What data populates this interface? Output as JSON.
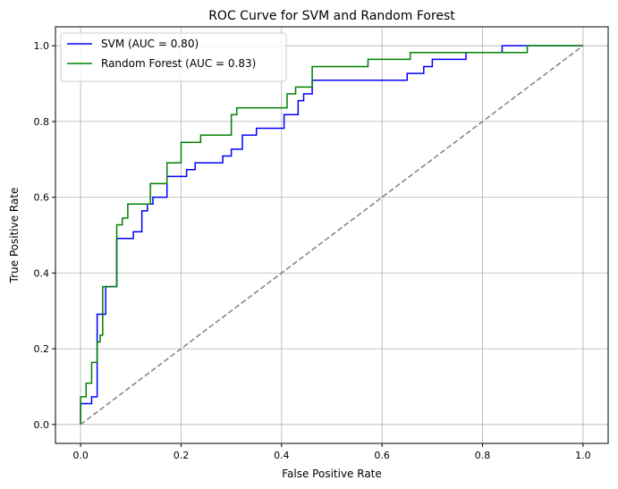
{
  "chart_data": {
    "type": "line",
    "title": "ROC Curve for SVM and Random Forest",
    "xlabel": "False Positive Rate",
    "ylabel": "True Positive Rate",
    "xlim": [
      -0.05,
      1.05
    ],
    "ylim": [
      -0.05,
      1.05
    ],
    "xticks": [
      "0.0",
      "0.2",
      "0.4",
      "0.6",
      "0.8",
      "1.0"
    ],
    "yticks": [
      "0.0",
      "0.2",
      "0.4",
      "0.6",
      "0.8",
      "1.0"
    ],
    "grid": true,
    "legend_position": "upper-left",
    "series": [
      {
        "name": "SVM (AUC = 0.80)",
        "color": "#0000ff",
        "style": "solid",
        "points": [
          [
            0.0,
            0.0
          ],
          [
            0.0,
            0.055
          ],
          [
            0.022,
            0.055
          ],
          [
            0.022,
            0.073
          ],
          [
            0.033,
            0.073
          ],
          [
            0.033,
            0.291
          ],
          [
            0.05,
            0.291
          ],
          [
            0.05,
            0.364
          ],
          [
            0.072,
            0.364
          ],
          [
            0.072,
            0.491
          ],
          [
            0.105,
            0.491
          ],
          [
            0.105,
            0.509
          ],
          [
            0.122,
            0.509
          ],
          [
            0.122,
            0.564
          ],
          [
            0.133,
            0.564
          ],
          [
            0.133,
            0.582
          ],
          [
            0.144,
            0.582
          ],
          [
            0.144,
            0.6
          ],
          [
            0.172,
            0.6
          ],
          [
            0.172,
            0.655
          ],
          [
            0.211,
            0.655
          ],
          [
            0.211,
            0.673
          ],
          [
            0.228,
            0.673
          ],
          [
            0.228,
            0.691
          ],
          [
            0.283,
            0.691
          ],
          [
            0.283,
            0.709
          ],
          [
            0.3,
            0.709
          ],
          [
            0.3,
            0.727
          ],
          [
            0.322,
            0.727
          ],
          [
            0.322,
            0.764
          ],
          [
            0.35,
            0.764
          ],
          [
            0.35,
            0.782
          ],
          [
            0.405,
            0.782
          ],
          [
            0.405,
            0.818
          ],
          [
            0.433,
            0.818
          ],
          [
            0.433,
            0.855
          ],
          [
            0.444,
            0.855
          ],
          [
            0.444,
            0.873
          ],
          [
            0.461,
            0.873
          ],
          [
            0.461,
            0.909
          ],
          [
            0.65,
            0.909
          ],
          [
            0.65,
            0.927
          ],
          [
            0.683,
            0.927
          ],
          [
            0.683,
            0.945
          ],
          [
            0.7,
            0.945
          ],
          [
            0.7,
            0.964
          ],
          [
            0.767,
            0.964
          ],
          [
            0.767,
            0.982
          ],
          [
            0.839,
            0.982
          ],
          [
            0.839,
            1.0
          ],
          [
            1.0,
            1.0
          ]
        ]
      },
      {
        "name": "Random Forest (AUC = 0.83)",
        "color": "#008000",
        "style": "solid",
        "points": [
          [
            0.0,
            0.0
          ],
          [
            0.0,
            0.073
          ],
          [
            0.011,
            0.073
          ],
          [
            0.011,
            0.109
          ],
          [
            0.022,
            0.109
          ],
          [
            0.022,
            0.164
          ],
          [
            0.033,
            0.164
          ],
          [
            0.033,
            0.218
          ],
          [
            0.039,
            0.218
          ],
          [
            0.039,
            0.236
          ],
          [
            0.044,
            0.236
          ],
          [
            0.044,
            0.364
          ],
          [
            0.072,
            0.364
          ],
          [
            0.072,
            0.527
          ],
          [
            0.083,
            0.527
          ],
          [
            0.083,
            0.545
          ],
          [
            0.094,
            0.545
          ],
          [
            0.094,
            0.582
          ],
          [
            0.139,
            0.582
          ],
          [
            0.139,
            0.636
          ],
          [
            0.172,
            0.636
          ],
          [
            0.172,
            0.691
          ],
          [
            0.2,
            0.691
          ],
          [
            0.2,
            0.745
          ],
          [
            0.239,
            0.745
          ],
          [
            0.239,
            0.764
          ],
          [
            0.3,
            0.764
          ],
          [
            0.3,
            0.818
          ],
          [
            0.311,
            0.818
          ],
          [
            0.311,
            0.836
          ],
          [
            0.411,
            0.836
          ],
          [
            0.411,
            0.873
          ],
          [
            0.428,
            0.873
          ],
          [
            0.428,
            0.891
          ],
          [
            0.461,
            0.891
          ],
          [
            0.461,
            0.945
          ],
          [
            0.572,
            0.945
          ],
          [
            0.572,
            0.964
          ],
          [
            0.656,
            0.964
          ],
          [
            0.656,
            0.982
          ],
          [
            0.889,
            0.982
          ],
          [
            0.889,
            1.0
          ],
          [
            1.0,
            1.0
          ]
        ]
      },
      {
        "name": "",
        "color": "#808080",
        "style": "dashed",
        "points": [
          [
            0.0,
            0.0
          ],
          [
            1.0,
            1.0
          ]
        ]
      }
    ]
  }
}
